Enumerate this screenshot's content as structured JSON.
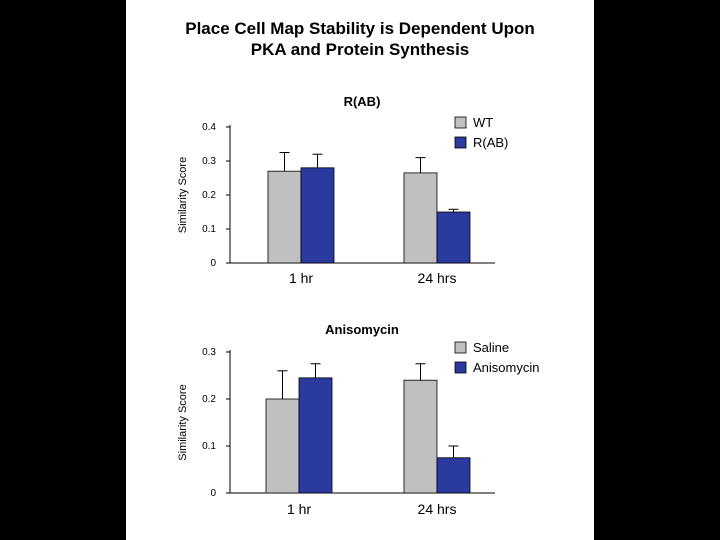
{
  "page": {
    "title_lines": [
      "Place Cell Map Stability is Dependent Upon",
      "PKA and Protein Synthesis"
    ]
  },
  "chart_data": [
    {
      "type": "bar",
      "title": "R(AB)",
      "xlabel": "",
      "ylabel": "Similarity Score",
      "categories": [
        "1 hr",
        "24 hrs"
      ],
      "ylim": [
        0,
        0.4
      ],
      "yticks": [
        "0",
        "0.1",
        "0.2",
        "0.3",
        "0.4"
      ],
      "series": [
        {
          "name": "WT",
          "color": "#c0c0c0",
          "values": [
            0.27,
            0.265
          ],
          "errors": [
            0.055,
            0.045
          ]
        },
        {
          "name": "R(AB)",
          "color": "#2b3a9e",
          "values": [
            0.28,
            0.15
          ],
          "errors": [
            0.04,
            0.008
          ]
        }
      ],
      "legend": "top-right",
      "grid": false
    },
    {
      "type": "bar",
      "title": "Anisomycin",
      "xlabel": "",
      "ylabel": "Similarity Score",
      "categories": [
        "1 hr",
        "24 hrs"
      ],
      "ylim": [
        0,
        0.3
      ],
      "yticks": [
        "0",
        "0.1",
        "0.2",
        "0.3"
      ],
      "series": [
        {
          "name": "Saline",
          "color": "#c0c0c0",
          "values": [
            0.2,
            0.24
          ],
          "errors": [
            0.06,
            0.035
          ]
        },
        {
          "name": "Anisomycin",
          "color": "#2b3a9e",
          "values": [
            0.245,
            0.075
          ],
          "errors": [
            0.03,
            0.025
          ]
        }
      ],
      "legend": "top-right",
      "grid": false
    }
  ]
}
